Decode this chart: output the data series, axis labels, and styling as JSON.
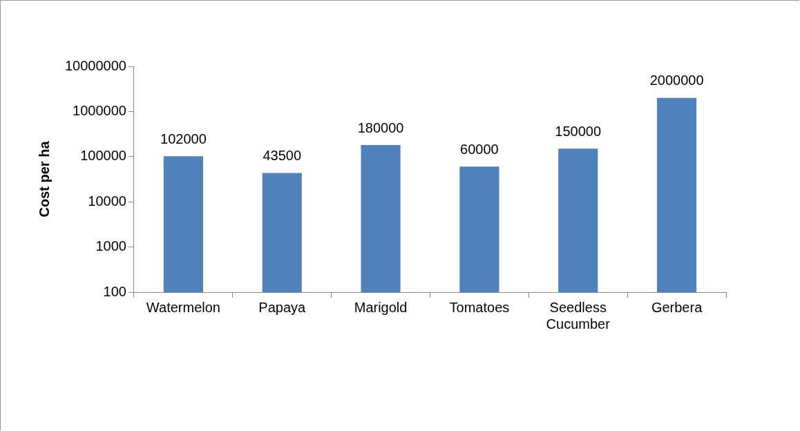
{
  "chart_data": {
    "type": "bar",
    "ylabel": "Cost per ha",
    "categories": [
      "Watermelon",
      "Papaya",
      "Marigold",
      "Tomatoes",
      "Seedless Cucumber",
      "Gerbera"
    ],
    "values": [
      102000,
      43500,
      180000,
      60000,
      150000,
      2000000
    ],
    "color": "#4f81bd",
    "log": "y",
    "ylim": [
      100,
      10000000
    ],
    "yticks": [
      100,
      1000,
      10000,
      100000,
      1000000,
      10000000
    ],
    "data_labels": true,
    "grid": false,
    "legend": false
  }
}
